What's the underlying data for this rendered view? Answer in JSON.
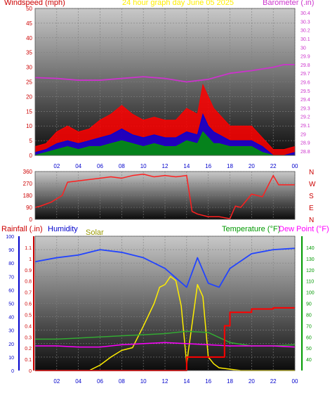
{
  "header": {
    "windspeed_title": "Windspeed (mph)",
    "graph_title": "24 hour graph day   June 05 2025",
    "barometer_title": "Barometer (.in)"
  },
  "bottom_header": {
    "rainfall_title": "Rainfall (.in)",
    "humidity_title": "Humidity",
    "solar_title": "Solar",
    "temperature_title": "Temperature (°F)",
    "dewpoint_title": "Dew Point (°F)"
  },
  "x_ticks": [
    "02",
    "04",
    "06",
    "08",
    "10",
    "12",
    "14",
    "16",
    "18",
    "20",
    "22",
    "00"
  ],
  "colors": {
    "wind_gust": "#ff0000",
    "wind_avg": "#0000dd",
    "wind_low": "#009900",
    "barometer": "#cc33cc",
    "direction": "#ff2020",
    "humidity": "#2244ff",
    "solar": "#ffee00",
    "temperature": "#33aa33",
    "dewpoint": "#ff00ff",
    "rainfall": "#ff0000",
    "left_axis": "#cc0000",
    "right_axis_baro": "#cc33cc",
    "dir_axis": "#cc0000",
    "bottom_left_axis": "#0000cc",
    "bottom_right_axis": "#009900",
    "rain_axis": "#cc0000"
  },
  "chart_data": [
    {
      "type": "line",
      "title": "24 hour graph day   June 05 2025",
      "xlabel": "",
      "ylabel": "Windspeed (mph)",
      "y2label": "Barometer (.in)",
      "x_hours_range": [
        0,
        24
      ],
      "x_ticks": [
        "02",
        "04",
        "06",
        "08",
        "10",
        "12",
        "14",
        "16",
        "18",
        "20",
        "22",
        "00"
      ],
      "ylim": [
        0,
        50
      ],
      "y_ticks": [
        0,
        5,
        10,
        15,
        20,
        25,
        30,
        35,
        40,
        45,
        50
      ],
      "y2lim": [
        28.75,
        30.45
      ],
      "y2_ticks": [
        28.8,
        28.9,
        29,
        29.1,
        29.2,
        29.3,
        29.4,
        29.5,
        29.6,
        29.7,
        29.8,
        29.9,
        30,
        30.1,
        30.2,
        30.3,
        30.4
      ],
      "grid": true,
      "series": [
        {
          "name": "gust",
          "axis": "left",
          "x": [
            0,
            1,
            2,
            3,
            4,
            5,
            6,
            7,
            8,
            9,
            10,
            11,
            12,
            13,
            14,
            15,
            15.5,
            16,
            16.5,
            17,
            18,
            19,
            20,
            21,
            22,
            23,
            24
          ],
          "values": [
            3,
            4,
            8,
            10,
            8,
            9,
            12,
            14,
            17,
            14,
            12,
            13,
            12,
            12,
            16,
            14,
            24,
            20,
            16,
            14,
            10,
            10,
            10,
            6,
            2,
            2,
            3
          ]
        },
        {
          "name": "average",
          "axis": "left",
          "x": [
            0,
            1,
            2,
            3,
            4,
            5,
            6,
            7,
            8,
            9,
            10,
            11,
            12,
            13,
            14,
            15,
            15.5,
            16,
            16.5,
            17,
            18,
            19,
            20,
            21,
            22,
            23,
            24
          ],
          "values": [
            1,
            2,
            4,
            5,
            4,
            5,
            6,
            7,
            9,
            7,
            6,
            7,
            6,
            6,
            8,
            7,
            14,
            10,
            8,
            7,
            5,
            5,
            5,
            3,
            0,
            0,
            1
          ]
        },
        {
          "name": "low",
          "axis": "left",
          "x": [
            0,
            1,
            2,
            3,
            4,
            5,
            6,
            7,
            8,
            9,
            10,
            11,
            12,
            13,
            14,
            15,
            15.5,
            16,
            16.5,
            17,
            18,
            19,
            20,
            21,
            22,
            23,
            24
          ],
          "values": [
            0,
            1,
            2,
            3,
            2,
            3,
            3,
            4,
            5,
            4,
            3,
            4,
            3,
            3,
            5,
            4,
            8,
            6,
            4,
            4,
            3,
            3,
            3,
            1,
            0,
            0,
            0
          ]
        },
        {
          "name": "barometer",
          "axis": "right",
          "x": [
            0,
            2,
            4,
            6,
            8,
            10,
            12,
            14,
            16,
            18,
            20,
            22,
            23,
            24
          ],
          "values": [
            29.65,
            29.64,
            29.62,
            29.62,
            29.64,
            29.66,
            29.64,
            29.6,
            29.63,
            29.7,
            29.73,
            29.77,
            29.8,
            29.8
          ]
        }
      ]
    },
    {
      "type": "line",
      "title": "",
      "xlabel": "",
      "ylabel": "",
      "x_hours_range": [
        0,
        24
      ],
      "ylim": [
        0,
        360
      ],
      "y_ticks": [
        0,
        90,
        180,
        270,
        360
      ],
      "right_labels": [
        "N",
        "W",
        "S",
        "E",
        "N"
      ],
      "grid": true,
      "series": [
        {
          "name": "direction",
          "x": [
            0,
            0.5,
            1.5,
            2.5,
            3,
            4,
            5,
            6,
            7,
            8,
            9,
            10,
            11,
            12,
            13,
            14,
            14.5,
            15,
            16,
            17,
            18,
            18.5,
            19,
            20,
            21,
            22,
            22.5,
            24
          ],
          "values": [
            90,
            100,
            130,
            180,
            280,
            290,
            300,
            310,
            320,
            310,
            330,
            340,
            320,
            330,
            320,
            330,
            60,
            40,
            20,
            20,
            5,
            100,
            90,
            190,
            170,
            330,
            260,
            260
          ]
        }
      ]
    },
    {
      "type": "line",
      "title": "",
      "xlabel": "",
      "ylabel": "Humidity",
      "x_hours_range": [
        0,
        24
      ],
      "ylim": [
        0,
        100
      ],
      "y_ticks": [
        0,
        10,
        20,
        30,
        40,
        50,
        60,
        70,
        80,
        90,
        100
      ],
      "rain_lim": [
        0,
        1.2
      ],
      "rain_ticks": [
        0,
        0.1,
        0.2,
        0.3,
        0.4,
        0.5,
        0.6,
        0.7,
        0.8,
        0.9,
        1,
        1.1
      ],
      "temp_lim": [
        30,
        150
      ],
      "temp_ticks": [
        40,
        50,
        60,
        70,
        80,
        90,
        100,
        110,
        120,
        130,
        140
      ],
      "grid": true,
      "series": [
        {
          "name": "Humidity",
          "axis": "left",
          "x": [
            0,
            2,
            4,
            6,
            8,
            10,
            12,
            14,
            15,
            16,
            17,
            18,
            20,
            22,
            24
          ],
          "values": [
            81,
            84,
            86,
            90,
            88,
            84,
            76,
            62,
            84,
            65,
            62,
            76,
            87,
            90,
            91
          ]
        },
        {
          "name": "Solar",
          "axis": "left",
          "x": [
            0,
            5,
            6,
            7,
            8,
            9,
            10,
            11,
            11.5,
            12,
            12.5,
            13,
            13.5,
            14,
            15,
            15.5,
            16,
            16.5,
            17,
            18,
            19,
            20,
            24
          ],
          "values": [
            0,
            0,
            4,
            10,
            15,
            17,
            33,
            50,
            62,
            64,
            70,
            67,
            48,
            5,
            64,
            55,
            10,
            5,
            2,
            1,
            0,
            0,
            0
          ]
        },
        {
          "name": "Temperature",
          "axis": "right",
          "x": [
            0,
            2,
            4,
            6,
            8,
            10,
            12,
            14,
            16,
            18,
            20,
            22,
            24
          ],
          "values": [
            58,
            58,
            59,
            60,
            61,
            62,
            63,
            65,
            64,
            55,
            52,
            52,
            53
          ]
        },
        {
          "name": "Dew Point",
          "axis": "right",
          "x": [
            0,
            2,
            4,
            6,
            8,
            10,
            12,
            14,
            16,
            18,
            20,
            22,
            24
          ],
          "values": [
            52,
            52,
            51,
            51,
            53,
            54,
            55,
            54,
            53,
            52,
            52,
            52,
            51
          ]
        },
        {
          "name": "Rainfall",
          "axis": "rain",
          "x": [
            0,
            13.5,
            14,
            15,
            16,
            17,
            17.5,
            18,
            20,
            22,
            24
          ],
          "values": [
            0,
            0,
            0.12,
            0.12,
            0.12,
            0.12,
            0.4,
            0.52,
            0.55,
            0.56,
            0.56
          ]
        }
      ]
    }
  ]
}
